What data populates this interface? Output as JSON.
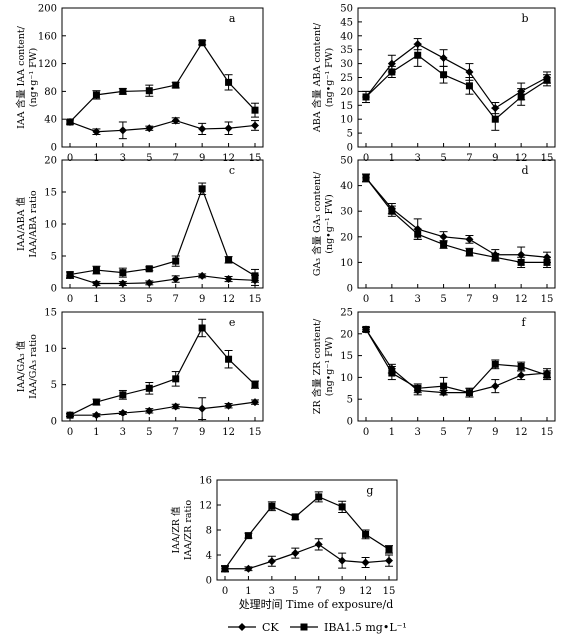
{
  "figure": {
    "xlabel": "处理时间 Time of exposure/d",
    "legend": [
      {
        "name": "CK",
        "marker": "diamond"
      },
      {
        "name": "IBA1.5 mg•L⁻¹",
        "marker": "square"
      }
    ]
  },
  "chart_data": [
    {
      "type": "line",
      "panel": "a",
      "ylabel_lines": [
        "IAA 含量 IAA content/",
        "(ng•g⁻¹ FW)"
      ],
      "categories": [
        "0",
        "1",
        "3",
        "5",
        "7",
        "9",
        "12",
        "15"
      ],
      "ylim": [
        0,
        200
      ],
      "yticks": [
        0,
        40,
        80,
        120,
        160,
        200
      ],
      "series": [
        {
          "name": "CK",
          "marker": "diamond",
          "values": [
            36,
            22,
            24,
            27,
            38,
            26,
            27,
            31
          ],
          "errors": [
            3,
            4,
            12,
            3,
            4,
            8,
            9,
            7
          ]
        },
        {
          "name": "IBA1.5 mg•L⁻¹",
          "marker": "square",
          "values": [
            36,
            75,
            80,
            81,
            89,
            150,
            93,
            53
          ],
          "errors": [
            3,
            6,
            4,
            8,
            4,
            3,
            11,
            10
          ]
        }
      ]
    },
    {
      "type": "line",
      "panel": "b",
      "ylabel_lines": [
        "ABA 含量 ABA content/",
        "(ng•g⁻¹ FW)"
      ],
      "categories": [
        "0",
        "1",
        "3",
        "5",
        "7",
        "9",
        "12",
        "15"
      ],
      "ylim": [
        0,
        50
      ],
      "yticks": [
        0,
        5,
        10,
        15,
        20,
        25,
        30,
        35,
        40,
        45,
        50
      ],
      "series": [
        {
          "name": "CK",
          "marker": "diamond",
          "values": [
            18,
            30,
            37,
            32,
            27,
            14,
            20,
            25
          ],
          "errors": [
            2,
            3,
            2,
            3,
            3,
            2,
            3,
            2
          ]
        },
        {
          "name": "IBA1.5 mg•L⁻¹",
          "marker": "square",
          "values": [
            18,
            27,
            33,
            26,
            22,
            10,
            18,
            24
          ],
          "errors": [
            2,
            2,
            4,
            3,
            3,
            4,
            3,
            2
          ]
        }
      ]
    },
    {
      "type": "line",
      "panel": "c",
      "ylabel_lines": [
        "IAA/ABA 值",
        "IAA/ABA ratio"
      ],
      "categories": [
        "0",
        "1",
        "3",
        "5",
        "7",
        "9",
        "12",
        "15"
      ],
      "ylim": [
        0,
        20
      ],
      "yticks": [
        0,
        5,
        10,
        15,
        20
      ],
      "series": [
        {
          "name": "CK",
          "marker": "diamond",
          "values": [
            2.0,
            0.7,
            0.7,
            0.8,
            1.4,
            1.9,
            1.4,
            1.2
          ],
          "errors": [
            0.5,
            0.3,
            0.3,
            0.3,
            0.5,
            0.3,
            0.4,
            0.8
          ]
        },
        {
          "name": "IBA1.5 mg•L⁻¹",
          "marker": "square",
          "values": [
            2.1,
            2.8,
            2.4,
            3.0,
            4.2,
            15.5,
            4.4,
            1.9
          ],
          "errors": [
            0.4,
            0.6,
            0.7,
            0.3,
            0.8,
            0.9,
            0.5,
            1.0
          ]
        }
      ]
    },
    {
      "type": "line",
      "panel": "d",
      "ylabel_lines": [
        "GA₃ 含量 GA₃ content/",
        "(ng•g⁻¹ FW)"
      ],
      "categories": [
        "0",
        "1",
        "3",
        "5",
        "7",
        "9",
        "12",
        "15"
      ],
      "ylim": [
        0,
        50
      ],
      "yticks": [
        0,
        10,
        20,
        30,
        40,
        50
      ],
      "series": [
        {
          "name": "CK",
          "marker": "diamond",
          "values": [
            43,
            31,
            23,
            20,
            19,
            13,
            13,
            12
          ],
          "errors": [
            1.5,
            2,
            4,
            2,
            1.5,
            2,
            3,
            2
          ]
        },
        {
          "name": "IBA1.5 mg•L⁻¹",
          "marker": "square",
          "values": [
            43,
            30,
            21,
            17,
            14,
            12,
            10,
            10
          ],
          "errors": [
            1.5,
            2,
            2,
            1.5,
            1.5,
            1.5,
            2,
            2
          ]
        }
      ]
    },
    {
      "type": "line",
      "panel": "e",
      "ylabel_lines": [
        "IAA/GA₃ 值",
        "IAA/GA₃ ratio"
      ],
      "categories": [
        "0",
        "1",
        "3",
        "5",
        "7",
        "9",
        "12",
        "15"
      ],
      "ylim": [
        0,
        15
      ],
      "yticks": [
        0,
        5,
        10,
        15
      ],
      "series": [
        {
          "name": "CK",
          "marker": "diamond",
          "values": [
            0.8,
            0.8,
            1.1,
            1.4,
            2.0,
            1.7,
            2.1,
            2.6
          ],
          "errors": [
            0.2,
            0.2,
            0.2,
            0.3,
            0.3,
            1.5,
            0.3,
            0.3
          ]
        },
        {
          "name": "IBA1.5 mg•L⁻¹",
          "marker": "square",
          "values": [
            0.8,
            2.6,
            3.6,
            4.5,
            5.8,
            12.8,
            8.5,
            5.0
          ],
          "errors": [
            0.2,
            0.4,
            0.6,
            0.8,
            1.0,
            1.2,
            1.2,
            0.5
          ]
        }
      ]
    },
    {
      "type": "line",
      "panel": "f",
      "ylabel_lines": [
        "ZR 含量 ZR content/",
        "(ng•g⁻¹ FW)"
      ],
      "categories": [
        "0",
        "1",
        "3",
        "5",
        "7",
        "9",
        "12",
        "15"
      ],
      "ylim": [
        0,
        25
      ],
      "yticks": [
        0,
        5,
        10,
        15,
        20,
        25
      ],
      "series": [
        {
          "name": "CK",
          "marker": "diamond",
          "values": [
            21,
            12,
            7,
            6.5,
            6.5,
            8,
            10.5,
            11
          ],
          "errors": [
            0.5,
            1,
            1,
            0.5,
            1,
            1.5,
            1,
            1
          ]
        },
        {
          "name": "IBA1.5 mg•L⁻¹",
          "marker": "square",
          "values": [
            21,
            11,
            7.5,
            8,
            6.5,
            13,
            12.5,
            10.5
          ],
          "errors": [
            0.5,
            1.5,
            1,
            2,
            1,
            1,
            1,
            1
          ]
        }
      ]
    },
    {
      "type": "line",
      "panel": "g",
      "ylabel_lines": [
        "IAA/ZR 值",
        "IAA/ZR ratio"
      ],
      "categories": [
        "0",
        "1",
        "3",
        "5",
        "7",
        "9",
        "12",
        "15"
      ],
      "ylim": [
        0,
        16
      ],
      "yticks": [
        0,
        4,
        8,
        12,
        16
      ],
      "series": [
        {
          "name": "CK",
          "marker": "diamond",
          "values": [
            1.8,
            1.8,
            3.0,
            4.3,
            5.7,
            3.1,
            2.8,
            3.1
          ],
          "errors": [
            0.4,
            0.3,
            0.8,
            0.8,
            0.9,
            1.2,
            0.8,
            0.9
          ]
        },
        {
          "name": "IBA1.5 mg•L⁻¹",
          "marker": "square",
          "values": [
            1.8,
            7.1,
            11.8,
            10.1,
            13.3,
            11.7,
            7.3,
            4.9
          ],
          "errors": [
            0.5,
            0.4,
            0.7,
            0.4,
            0.8,
            0.9,
            0.7,
            0.6
          ]
        }
      ]
    }
  ]
}
